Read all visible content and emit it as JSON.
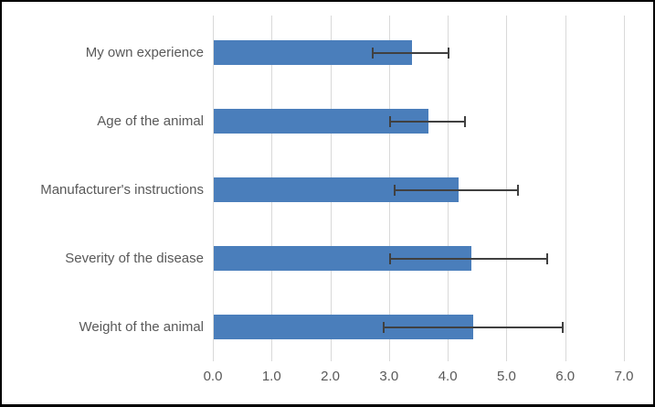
{
  "chart_data": {
    "type": "bar",
    "orientation": "horizontal",
    "title": "",
    "xlabel": "",
    "ylabel": "",
    "categories": [
      "My own experience",
      "Age of the animal",
      "Manufacturer's instructions",
      "Severity of the disease",
      "Weight of the animal"
    ],
    "values": [
      3.38,
      3.65,
      4.17,
      4.38,
      4.42
    ],
    "error_low": [
      2.72,
      3.01,
      3.09,
      3.02,
      2.91
    ],
    "error_high": [
      4.02,
      4.3,
      5.19,
      5.7,
      5.96
    ],
    "xlim": [
      0,
      7
    ],
    "x_ticks": [
      "0.0",
      "1.0",
      "2.0",
      "3.0",
      "4.0",
      "5.0",
      "6.0",
      "7.0"
    ],
    "grid": "vertical-only",
    "legend": "none",
    "colors": {
      "bar": "#4a7ebb",
      "gridline": "#d9d9d9",
      "error_bar": "#404040",
      "label_text": "#595959",
      "border": "#000000",
      "background": "#ffffff"
    }
  }
}
